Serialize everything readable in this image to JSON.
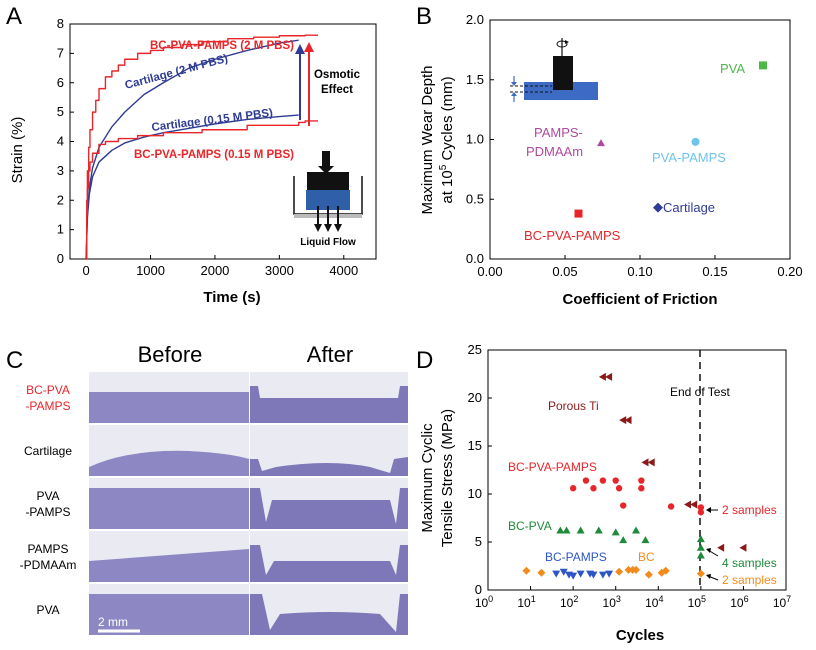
{
  "panels": {
    "A": {
      "letter": "A",
      "ylabel": "Strain (%)",
      "xlabel": "Time (s)",
      "annotation_osmotic": [
        "Osmotic",
        "Effect"
      ],
      "inset_label": "Liquid Flow"
    },
    "B": {
      "letter": "B",
      "ylabel_line1": "Maximum Wear Depth",
      "ylabel_line2_pre": "at 10",
      "ylabel_line2_sup": "5",
      "ylabel_line2_post": " Cycles (mm)",
      "xlabel": "Coefficient of Friction"
    },
    "C": {
      "letter": "C",
      "col_before": "Before",
      "col_after": "After",
      "rows": [
        {
          "label1": "BC-PVA",
          "label2": "-PAMPS",
          "color": "#e8262a"
        },
        {
          "label1": "Cartilage",
          "label2": "",
          "color": "#000000"
        },
        {
          "label1": "PVA",
          "label2": "-PAMPS",
          "color": "#000000"
        },
        {
          "label1": "PAMPS",
          "label2": "-PDMAAm",
          "color": "#000000"
        },
        {
          "label1": "PVA",
          "label2": "",
          "color": "#000000"
        }
      ],
      "scalebar": "2 mm"
    },
    "D": {
      "letter": "D",
      "ylabel_line1": "Maximum Cyclic",
      "ylabel_line2": "Tensile Stress (MPa)",
      "xlabel": "Cycles",
      "end_label": "End of Test",
      "annotations": {
        "bc_2samples": "2 samples",
        "bcpva_4samples": "4 samples",
        "bcpvapamps_2samples": "2 samples"
      }
    }
  },
  "chart_data": [
    {
      "panel": "A",
      "type": "line",
      "xlabel": "Time (s)",
      "ylabel": "Strain (%)",
      "xlim": [
        -250,
        4500
      ],
      "ylim": [
        0,
        8
      ],
      "xticks": [
        0,
        1000,
        2000,
        3000,
        4000
      ],
      "yticks": [
        0,
        1,
        2,
        3,
        4,
        5,
        6,
        7,
        8
      ],
      "series": [
        {
          "name": "BC-PVA-PAMPS (2 M PBS)",
          "color": "#e8262a",
          "style": "step",
          "x": [
            0,
            10,
            20,
            40,
            60,
            100,
            150,
            200,
            300,
            400,
            500,
            600,
            800,
            1000,
            1200,
            1500,
            1800,
            2200,
            2600,
            3000,
            3300,
            3400,
            3600
          ],
          "y": [
            0,
            2.0,
            3.0,
            3.8,
            4.4,
            5.0,
            5.4,
            5.8,
            6.2,
            6.4,
            6.6,
            6.8,
            7.0,
            7.1,
            7.2,
            7.3,
            7.4,
            7.5,
            7.55,
            7.6,
            7.6,
            7.62,
            7.62
          ]
        },
        {
          "name": "Cartilage (2 M PBS)",
          "color": "#2e3c93",
          "style": "smooth",
          "x": [
            0,
            20,
            50,
            100,
            200,
            400,
            600,
            900,
            1200,
            1600,
            2000,
            2500,
            3000,
            3300
          ],
          "y": [
            0,
            1.5,
            2.4,
            3.1,
            3.8,
            4.5,
            5.0,
            5.6,
            6.0,
            6.5,
            6.8,
            7.1,
            7.35,
            7.45
          ]
        },
        {
          "name": "Cartilage (0.15 M PBS)",
          "color": "#2e3c93",
          "style": "smooth",
          "x": [
            0,
            20,
            50,
            100,
            200,
            400,
            600,
            900,
            1200,
            1600,
            2000,
            2500,
            3000,
            3300
          ],
          "y": [
            0,
            1.4,
            2.2,
            2.8,
            3.3,
            3.7,
            3.95,
            4.15,
            4.3,
            4.45,
            4.6,
            4.75,
            4.85,
            4.9
          ]
        },
        {
          "name": "BC-PVA-PAMPS (0.15 M PBS)",
          "color": "#e8262a",
          "style": "step",
          "x": [
            0,
            10,
            20,
            40,
            60,
            100,
            200,
            300,
            500,
            800,
            1200,
            1800,
            2500,
            3300,
            3400,
            3600
          ],
          "y": [
            0,
            1.5,
            2.4,
            3.0,
            3.3,
            3.6,
            3.9,
            4.0,
            4.1,
            4.2,
            4.3,
            4.4,
            4.55,
            4.65,
            4.7,
            4.7
          ]
        }
      ]
    },
    {
      "panel": "B",
      "type": "scatter",
      "xlabel": "Coefficient of Friction",
      "ylabel": "Maximum Wear Depth at 10^5 Cycles (mm)",
      "xlim": [
        0.0,
        0.2
      ],
      "ylim": [
        0.0,
        2.0
      ],
      "xticks": [
        0.0,
        0.05,
        0.1,
        0.15,
        0.2
      ],
      "xtick_labels": [
        "0.00",
        "0.05",
        "0.10",
        "0.15",
        "0.20"
      ],
      "yticks": [
        0.0,
        0.5,
        1.0,
        1.5,
        2.0
      ],
      "ytick_labels": [
        "0.0",
        "0.5",
        "1.0",
        "1.5",
        "2.0"
      ],
      "points": [
        {
          "name": "PVA",
          "x": 0.182,
          "y": 1.62,
          "marker": "square",
          "color": "#4db848"
        },
        {
          "name": "PVA-PAMPS",
          "x": 0.137,
          "y": 0.98,
          "marker": "circle",
          "color": "#6ec5e9"
        },
        {
          "name": "PAMPS-PDMAAm",
          "x": 0.074,
          "y": 0.97,
          "marker": "triangle",
          "color": "#b04a9e"
        },
        {
          "name": "Cartilage",
          "x": 0.112,
          "y": 0.43,
          "marker": "diamond",
          "color": "#2e3c93"
        },
        {
          "name": "BC-PVA-PAMPS",
          "x": 0.059,
          "y": 0.38,
          "marker": "square",
          "color": "#e8262a"
        }
      ]
    },
    {
      "panel": "D",
      "type": "scatter",
      "xlabel": "Cycles",
      "ylabel": "Maximum Cyclic Tensile Stress (MPa)",
      "xscale": "log",
      "xlim_exp": [
        0,
        7
      ],
      "ylim": [
        0,
        25
      ],
      "xticks_exp": [
        0,
        1,
        2,
        3,
        4,
        5,
        6,
        7
      ],
      "yticks": [
        0,
        5,
        10,
        15,
        20,
        25
      ],
      "end_of_test_exp": 5,
      "series": [
        {
          "name": "Porous Ti",
          "color": "#8b1a1a",
          "marker": "triangle-left",
          "points": [
            [
              500,
              22.2
            ],
            [
              700,
              22.2
            ],
            [
              1500,
              17.7
            ],
            [
              2000,
              17.7
            ],
            [
              5000,
              13.3
            ],
            [
              7000,
              13.3
            ],
            [
              50000,
              8.9
            ],
            [
              70000,
              8.9
            ],
            [
              300000,
              4.4
            ],
            [
              1000000,
              4.4
            ]
          ]
        },
        {
          "name": "BC-PVA-PAMPS",
          "color": "#e8262a",
          "marker": "circle",
          "points": [
            [
              100,
              10.6
            ],
            [
              200,
              11.4
            ],
            [
              500,
              11.4
            ],
            [
              1000,
              11.4
            ],
            [
              1500,
              8.8
            ],
            [
              300,
              10.6
            ],
            [
              1200,
              10.6
            ],
            [
              4000,
              11.4
            ],
            [
              4000,
              10.6
            ],
            [
              20000,
              8.7
            ],
            [
              100000,
              8.6
            ],
            [
              100000,
              8.1
            ]
          ]
        },
        {
          "name": "BC-PVA",
          "color": "#1e8a3a",
          "marker": "triangle-up",
          "points": [
            [
              50,
              6.2
            ],
            [
              70,
              6.2
            ],
            [
              150,
              6.2
            ],
            [
              400,
              6.2
            ],
            [
              1000,
              6.0
            ],
            [
              1500,
              5.2
            ],
            [
              3000,
              6.2
            ],
            [
              5000,
              5.2
            ],
            [
              100000,
              5.3
            ],
            [
              100000,
              4.4
            ],
            [
              100000,
              3.6
            ]
          ]
        },
        {
          "name": "BC-PAMPS",
          "color": "#2e55c6",
          "marker": "triangle-down",
          "points": [
            [
              40,
              1.7
            ],
            [
              60,
              1.9
            ],
            [
              80,
              1.6
            ],
            [
              100,
              1.5
            ],
            [
              150,
              1.7
            ],
            [
              250,
              1.7
            ],
            [
              300,
              1.6
            ],
            [
              500,
              1.6
            ],
            [
              700,
              1.7
            ]
          ]
        },
        {
          "name": "BC",
          "color": "#f28b1c",
          "marker": "diamond",
          "points": [
            [
              8,
              2.0
            ],
            [
              18,
              1.8
            ],
            [
              1200,
              1.9
            ],
            [
              2000,
              2.1
            ],
            [
              2500,
              2.1
            ],
            [
              3000,
              2.1
            ],
            [
              6000,
              1.6
            ],
            [
              12000,
              1.8
            ],
            [
              15000,
              2.0
            ],
            [
              100000,
              1.7
            ]
          ]
        }
      ]
    }
  ]
}
